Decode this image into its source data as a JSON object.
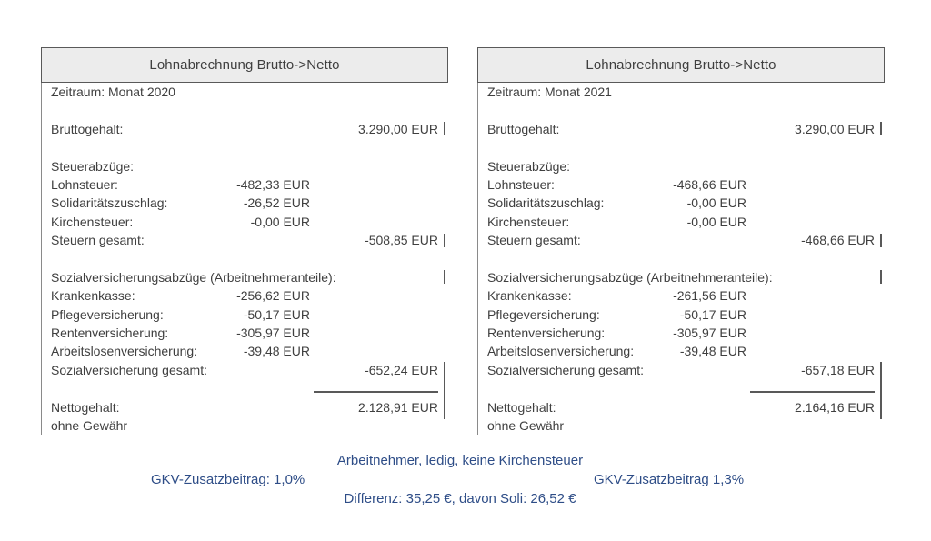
{
  "theme": {
    "accent_blue": "#2e4d87",
    "header_bg": "#ececec",
    "border_gray": "#595959",
    "text_gray": "#3f3f3f"
  },
  "tables": [
    {
      "title": "Lohnabrechnung Brutto->Netto",
      "rows": [
        {
          "label": "Zeitraum: Monat 2020"
        },
        {},
        {
          "label": "Bruttogehalt:",
          "right": "3.290,00 EUR",
          "pipe": true
        },
        {},
        {
          "label": "Steuerabzüge:"
        },
        {
          "label": "Lohnsteuer:",
          "mid": "-482,33 EUR"
        },
        {
          "label": "Solidaritätszuschlag:",
          "mid": "-26,52 EUR"
        },
        {
          "label": "Kirchensteuer:",
          "mid": "-0,00 EUR"
        },
        {
          "label": "Steuern gesamt:",
          "right": "-508,85 EUR",
          "pipe": true
        },
        {},
        {
          "label": "Sozialversicherungsabzüge (Arbeitnehmeranteile):",
          "pipe": true
        },
        {
          "label": "Krankenkasse:",
          "mid": "-256,62 EUR"
        },
        {
          "label": "Pflegeversicherung:",
          "mid": "-50,17 EUR"
        },
        {
          "label": "Rentenversicherung:",
          "mid": "-305,97 EUR"
        },
        {
          "label": "Arbeitslosenversicherung:",
          "mid": "-39,48 EUR"
        },
        {
          "label": "Sozialversicherung gesamt:",
          "right": "-652,24 EUR"
        },
        {
          "line": true
        },
        {
          "label": "Nettogehalt:",
          "right": "2.128,91 EUR"
        },
        {
          "label": "ohne Gewähr"
        }
      ]
    },
    {
      "title": "Lohnabrechnung Brutto->Netto",
      "rows": [
        {
          "label": "Zeitraum: Monat 2021"
        },
        {},
        {
          "label": "Bruttogehalt:",
          "right": "3.290,00 EUR",
          "pipe": true
        },
        {},
        {
          "label": "Steuerabzüge:"
        },
        {
          "label": "Lohnsteuer:",
          "mid": "-468,66 EUR"
        },
        {
          "label": "Solidaritätszuschlag:",
          "mid": "-0,00 EUR"
        },
        {
          "label": "Kirchensteuer:",
          "mid": "-0,00 EUR"
        },
        {
          "label": "Steuern gesamt:",
          "right": "-468,66 EUR",
          "pipe": true
        },
        {},
        {
          "label": "Sozialversicherungsabzüge (Arbeitnehmeranteile):",
          "pipe": true
        },
        {
          "label": "Krankenkasse:",
          "mid": "-261,56 EUR"
        },
        {
          "label": "Pflegeversicherung:",
          "mid": "-50,17 EUR"
        },
        {
          "label": "Rentenversicherung:",
          "mid": "-305,97 EUR"
        },
        {
          "label": "Arbeitslosenversicherung:",
          "mid": "-39,48 EUR"
        },
        {
          "label": "Sozialversicherung gesamt:",
          "right": "-657,18 EUR"
        },
        {
          "line": true
        },
        {
          "label": "Nettogehalt:",
          "right": "2.164,16 EUR"
        },
        {
          "label": "ohne Gewähr"
        }
      ]
    }
  ],
  "footer": {
    "line1": "Arbeitnehmer, ledig, keine Kirchensteuer",
    "gkv_left": "GKV-Zusatzbeitrag: 1,0%",
    "gkv_right": "GKV-Zusatzbeitrag 1,3%",
    "line3": "Differenz: 35,25 €, davon Soli: 26,52 €"
  }
}
